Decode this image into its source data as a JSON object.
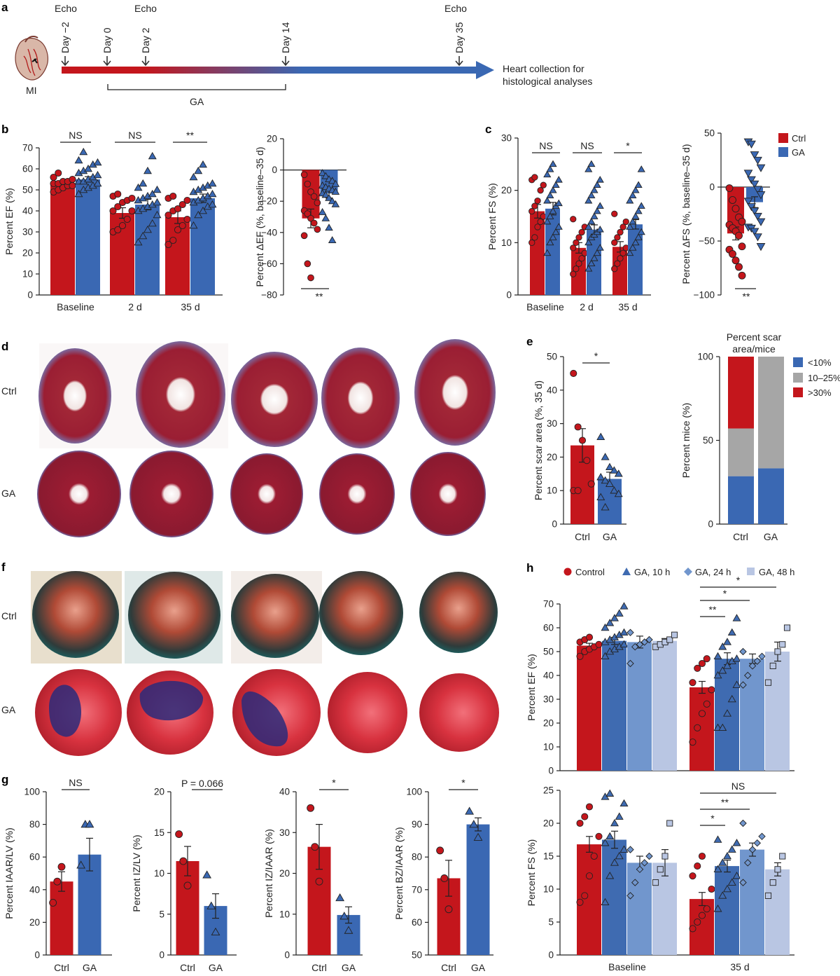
{
  "colors": {
    "ctrl": "#c4161c",
    "ga": "#3a68b3",
    "ga10": "#3f6bb1",
    "ga24": "#7196cd",
    "ga48": "#b9c6e3",
    "grey": "#a6a6a6"
  },
  "panel_a": {
    "label": "a",
    "mi_label": "MI",
    "echo_labels": [
      "Echo",
      "Echo",
      "Echo"
    ],
    "days": [
      "Day −2",
      "Day 0",
      "Day 2",
      "Day 14",
      "Day 35"
    ],
    "end_text": [
      "Heart collection for",
      "histological analyses"
    ],
    "ga_label": "GA"
  },
  "panel_labels": {
    "b": "b",
    "c": "c",
    "d": "d",
    "e": "e",
    "f": "f",
    "g": "g",
    "h": "h"
  },
  "legend_c": {
    "ctrl": "Ctrl",
    "ga": "GA"
  },
  "legend_e": [
    "<10%",
    "10–25%",
    ">30%"
  ],
  "legend_h": [
    "Control",
    "GA, 10 h",
    "GA, 24 h",
    "GA, 48 h"
  ],
  "panel_d": {
    "row_labels": [
      "Ctrl",
      "GA"
    ]
  },
  "panel_f": {
    "row_labels": [
      "Ctrl",
      "GA"
    ]
  },
  "chart_data": [
    {
      "id": "b1",
      "type": "bar",
      "ylabel": "Percent EF (%)",
      "ylim": [
        0,
        70
      ],
      "yticks": [
        0,
        10,
        20,
        30,
        40,
        50,
        60,
        70
      ],
      "categories": [
        "Baseline",
        "2 d",
        "35 d"
      ],
      "series": [
        {
          "name": "Ctrl",
          "values": [
            53,
            39,
            37
          ],
          "errors": [
            1,
            2.5,
            3
          ],
          "points": [
            [
              49,
              50,
              51,
              52,
              52,
              53,
              53,
              54,
              54,
              55,
              56,
              58
            ],
            [
              30,
              31,
              33,
              36,
              40,
              40,
              42,
              44,
              45,
              46,
              47,
              48
            ],
            [
              24,
              26,
              31,
              33,
              36,
              38,
              40,
              41,
              43,
              45,
              46,
              47
            ]
          ]
        },
        {
          "name": "GA",
          "values": [
            55,
            43,
            46
          ],
          "errors": [
            1.3,
            2.5,
            2
          ],
          "points": [
            [
              48,
              50,
              51,
              52,
              53,
              54,
              54,
              55,
              56,
              57,
              58,
              59,
              60,
              62,
              63,
              64,
              68
            ],
            [
              25,
              28,
              31,
              34,
              38,
              40,
              41,
              42,
              43,
              44,
              45,
              46,
              47,
              48,
              50,
              51,
              53,
              59,
              66
            ],
            [
              33,
              38,
              40,
              42,
              43,
              44,
              45,
              46,
              47,
              48,
              49,
              50,
              51,
              52,
              53,
              56,
              59,
              62
            ]
          ]
        }
      ],
      "significance": [
        "NS",
        "NS",
        "**"
      ]
    },
    {
      "id": "b2",
      "type": "bar",
      "ylabel": "Percent ΔEF (%, baseline–35 d)",
      "ylim": [
        -80,
        20
      ],
      "yticks": [
        -80,
        -60,
        -40,
        -20,
        0,
        20
      ],
      "categories": [
        "Ctrl",
        "GA"
      ],
      "series": [
        {
          "name": "ΔEF",
          "values": [
            -31,
            -15
          ],
          "errors": [
            6,
            3
          ]
        }
      ],
      "points": [
        [
          -3,
          -9,
          -14,
          -17,
          -21,
          -26,
          -28,
          -31,
          -34,
          -38,
          -42,
          -60,
          -69
        ],
        [
          -2,
          -4,
          -6,
          -7,
          -9,
          -10,
          -11,
          -12,
          -13,
          -14,
          -15,
          -16,
          -18,
          -20,
          -22,
          -27,
          -31,
          -37,
          -45
        ]
      ],
      "significance": [
        "**"
      ]
    },
    {
      "id": "c1",
      "type": "bar",
      "ylabel": "Percent FS (%)",
      "ylim": [
        0,
        30
      ],
      "yticks": [
        0,
        10,
        20,
        30
      ],
      "categories": [
        "Baseline",
        "2 d",
        "35 d"
      ],
      "series": [
        {
          "name": "Ctrl",
          "values": [
            16,
            9,
            9.2
          ],
          "errors": [
            1.3,
            1,
            1
          ],
          "points": [
            [
              10,
              11,
              13,
              14,
              15,
              16,
              17,
              18,
              20,
              21,
              22,
              22.5
            ],
            [
              4,
              5,
              6,
              7,
              8,
              9,
              10,
              11,
              12,
              13,
              14.5
            ],
            [
              5,
              6,
              7,
              8,
              9,
              10,
              11,
              12,
              13,
              14,
              15.5
            ]
          ]
        },
        {
          "name": "GA",
          "values": [
            16.5,
            12.5,
            13.5
          ],
          "errors": [
            1.2,
            0.9,
            0.9
          ],
          "points": [
            [
              8,
              10,
              11,
              12,
              13,
              14,
              15,
              16,
              17,
              17.5,
              18,
              19,
              20,
              21,
              22,
              23,
              24,
              25
            ],
            [
              5,
              6,
              7,
              8,
              9,
              10,
              11,
              11.5,
              12,
              12.5,
              13,
              14,
              15,
              16,
              17,
              18,
              19,
              20,
              21,
              22,
              24,
              25
            ],
            [
              8,
              9,
              10,
              11,
              12,
              13,
              14,
              15,
              16,
              17,
              18,
              19,
              20,
              21,
              24
            ]
          ]
        }
      ],
      "significance": [
        "NS",
        "NS",
        "*"
      ]
    },
    {
      "id": "c2",
      "type": "bar",
      "ylabel": "Percent ΔFS (%, baseline–35 d)",
      "ylim": [
        -100,
        50
      ],
      "yticks": [
        -100,
        -50,
        0,
        50
      ],
      "categories": [
        "Ctrl",
        "GA"
      ],
      "series": [
        {
          "name": "ΔFS",
          "values": [
            -43,
            -14
          ],
          "errors": [
            6,
            5
          ]
        }
      ],
      "points": [
        [
          -1,
          -12,
          -20,
          -28,
          -32,
          -35,
          -38,
          -41,
          -45,
          -55,
          -58,
          -62,
          -68,
          -74,
          -82
        ],
        [
          42,
          40,
          30,
          25,
          18,
          13,
          7,
          3,
          -2,
          -7,
          -13,
          -18,
          -22,
          -27,
          -32,
          -37,
          -38,
          -41,
          -46,
          -55
        ]
      ],
      "significance": [
        "**"
      ]
    },
    {
      "id": "e1",
      "type": "bar",
      "ylabel": "Percent scar area (%, 35 d)",
      "ylim": [
        0,
        50
      ],
      "yticks": [
        0,
        10,
        20,
        30,
        40,
        50
      ],
      "categories": [
        "Ctrl",
        "GA"
      ],
      "series": [
        {
          "name": "Scar area",
          "values": [
            23.5,
            13.5
          ],
          "errors": [
            5,
            2
          ]
        }
      ],
      "points": [
        [
          45,
          29,
          25,
          19,
          12,
          10,
          10
        ],
        [
          26,
          20,
          17,
          16,
          15,
          14,
          13,
          12,
          10,
          9,
          8,
          5
        ]
      ],
      "significance": [
        "*"
      ]
    },
    {
      "id": "e2",
      "type": "stacked-bar",
      "title": "Percent scar area/mice",
      "ylabel": "Percent mice (%)",
      "ylim": [
        0,
        100
      ],
      "yticks": [
        0,
        50,
        100
      ],
      "categories": [
        "Ctrl",
        "GA"
      ],
      "series": [
        {
          "name": "<10%",
          "values": [
            28.6,
            33.3
          ]
        },
        {
          "name": "10–25%",
          "values": [
            28.5,
            66.7
          ]
        },
        {
          "name": ">30%",
          "values": [
            42.9,
            0
          ]
        }
      ]
    },
    {
      "id": "g1",
      "type": "bar",
      "ylabel": "Percent IAAR/LV (%)",
      "ylim": [
        0,
        100
      ],
      "yticks": [
        0,
        20,
        40,
        60,
        80,
        100
      ],
      "categories": [
        "Ctrl",
        "GA"
      ],
      "series": [
        {
          "name": "IAAR/LV",
          "values": [
            45,
            61.5
          ],
          "errors": [
            6,
            10
          ]
        }
      ],
      "points": [
        [
          32,
          45,
          54
        ],
        [
          55,
          80,
          80
        ]
      ],
      "significance": [
        "NS"
      ]
    },
    {
      "id": "g2",
      "type": "bar",
      "ylabel": "Percent IZ/LV (%)",
      "ylim": [
        0,
        20
      ],
      "yticks": [
        0,
        5,
        10,
        15,
        20
      ],
      "categories": [
        "Ctrl",
        "GA"
      ],
      "series": [
        {
          "name": "IZ/LV",
          "values": [
            11.5,
            6
          ],
          "errors": [
            1.8,
            1.5
          ]
        }
      ],
      "points": [
        [
          14.8,
          11.5,
          8.5
        ],
        [
          9.8,
          6,
          2.8
        ]
      ],
      "significance": [
        "P = 0.066"
      ]
    },
    {
      "id": "g3",
      "type": "bar",
      "ylabel": "Percent IZ/IAAR (%)",
      "ylim": [
        0,
        40
      ],
      "yticks": [
        0,
        10,
        20,
        30,
        40
      ],
      "categories": [
        "Ctrl",
        "GA"
      ],
      "series": [
        {
          "name": "IZ/IAAR",
          "values": [
            26.5,
            9.8
          ],
          "errors": [
            5.5,
            2
          ]
        }
      ],
      "points": [
        [
          36,
          26.5,
          18
        ],
        [
          14,
          9.5,
          6
        ]
      ],
      "significance": [
        "*"
      ]
    },
    {
      "id": "g4",
      "type": "bar",
      "ylabel": "Percent BZ/IAAR (%)",
      "ylim": [
        50,
        100
      ],
      "yticks": [
        50,
        60,
        70,
        80,
        90,
        100
      ],
      "categories": [
        "Ctrl",
        "GA"
      ],
      "series": [
        {
          "name": "BZ/IAAR",
          "values": [
            73.5,
            90
          ],
          "errors": [
            5.5,
            2
          ]
        }
      ],
      "points": [
        [
          82,
          73.5,
          64
        ],
        [
          94,
          90,
          86
        ]
      ],
      "significance": [
        "*"
      ]
    },
    {
      "id": "h1",
      "type": "bar",
      "ylabel": "Percent EF (%)",
      "ylim": [
        0,
        70
      ],
      "yticks": [
        0,
        10,
        20,
        30,
        40,
        50,
        60,
        70
      ],
      "categories": [
        "Baseline",
        "35 d"
      ],
      "series": [
        {
          "name": "Control",
          "values": [
            52.5,
            35
          ],
          "errors": [
            1,
            2.5
          ],
          "points": [
            [
              48,
              50,
              51,
              52,
              53,
              54,
              55,
              56
            ],
            [
              12,
              18,
              24,
              28,
              34,
              37,
              43,
              45,
              47
            ]
          ]
        },
        {
          "name": "GA, 10 h",
          "values": [
            54.5,
            47
          ],
          "errors": [
            1.5,
            2.5
          ],
          "points": [
            [
              48,
              50,
              51,
              52,
              53,
              54,
              55,
              56,
              57,
              58,
              60,
              62,
              64,
              66,
              69
            ],
            [
              18,
              18,
              24,
              30,
              36,
              40,
              42,
              44,
              46,
              47,
              48,
              52,
              54,
              58,
              64
            ]
          ]
        },
        {
          "name": "GA, 24 h",
          "values": [
            54,
            47
          ],
          "errors": [
            2.5,
            2
          ],
          "points": [
            [
              45,
              52,
              53,
              54,
              55,
              58
            ],
            [
              36,
              40,
              44,
              46,
              48,
              50
            ]
          ]
        },
        {
          "name": "GA, 48 h",
          "values": [
            54.5,
            50
          ],
          "errors": [
            1,
            4
          ],
          "points": [
            [
              52,
              53,
              54,
              55,
              57
            ],
            [
              37,
              44,
              50,
              53,
              60
            ]
          ]
        }
      ],
      "significance": [
        "**",
        "*",
        "*"
      ]
    },
    {
      "id": "h2",
      "type": "bar",
      "ylabel": "Percent FS (%)",
      "ylim": [
        0,
        25
      ],
      "yticks": [
        0,
        5,
        10,
        15,
        20,
        25
      ],
      "xlabels": [
        "Baseline",
        "35 d"
      ],
      "categories": [
        "Baseline",
        "35 d"
      ],
      "series": [
        {
          "name": "Control",
          "values": [
            16.8,
            8.5
          ],
          "errors": [
            1.2,
            1
          ],
          "points": [
            [
              8,
              9,
              12,
              15,
              18,
              20,
              21,
              22.5
            ],
            [
              4,
              5,
              6,
              7,
              10,
              12,
              13.5,
              15
            ]
          ]
        },
        {
          "name": "GA, 10 h",
          "values": [
            17.5,
            13.5
          ],
          "errors": [
            1.3,
            0.9
          ],
          "points": [
            [
              8,
              12,
              14,
              15,
              16,
              17,
              18,
              20,
              21,
              23,
              24,
              24.5
            ],
            [
              7,
              9,
              10,
              11,
              12,
              13,
              14,
              15,
              16,
              17,
              17.5
            ]
          ]
        },
        {
          "name": "GA, 24 h",
          "values": [
            14,
            16
          ],
          "errors": [
            1,
            1
          ],
          "points": [
            [
              9,
              11,
              13,
              14,
              15,
              16
            ],
            [
              11,
              14,
              16,
              17,
              18,
              20
            ]
          ]
        },
        {
          "name": "GA, 48 h",
          "values": [
            14,
            13
          ],
          "errors": [
            2,
            1
          ],
          "points": [
            [
              11,
              13,
              15,
              20
            ],
            [
              9,
              11,
              13,
              15
            ]
          ]
        }
      ],
      "significance": [
        "*",
        "**",
        "NS"
      ]
    }
  ]
}
